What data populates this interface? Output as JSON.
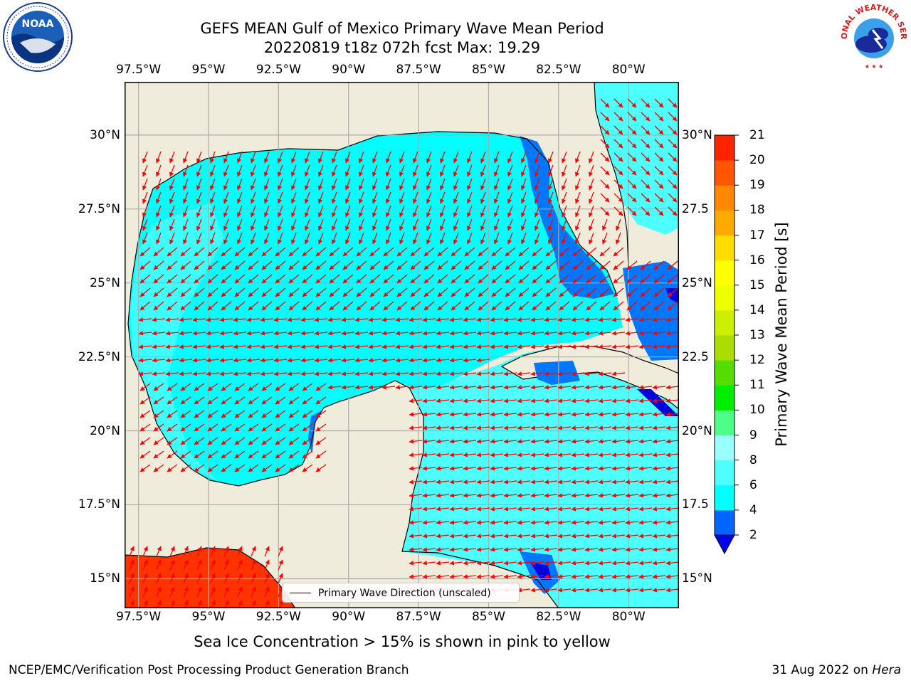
{
  "header": {
    "title": "GEFS MEAN Gulf of Mexico Primary Wave Mean Period",
    "subtitle": "20220819 t18z 072h fcst   Max: 19.29"
  },
  "logos": {
    "left": {
      "icon": "noaa-logo-icon",
      "text": "NOAA"
    },
    "right": {
      "icon": "nws-logo-icon",
      "text": "NATIONAL WEATHER SERVICE"
    }
  },
  "map": {
    "lon_range": [
      -98,
      -78.2
    ],
    "lat_range": [
      14,
      31.8
    ],
    "lon_ticks": [
      "97.5°W",
      "95°W",
      "92.5°W",
      "90°W",
      "87.5°W",
      "85°W",
      "82.5°W",
      "80°W"
    ],
    "lon_tick_values": [
      -97.5,
      -95,
      -92.5,
      -90,
      -87.5,
      -85,
      -82.5,
      -80
    ],
    "lat_ticks": [
      "30°N",
      "27.5°N",
      "25°N",
      "22.5°N",
      "20°N",
      "17.5°N",
      "15°N"
    ],
    "lat_tick_values": [
      30,
      27.5,
      25,
      22.5,
      20,
      17.5,
      15
    ],
    "right_lat_ticks": [
      "30°N",
      "27.5",
      "25°N",
      "22.5",
      "20°N",
      "17.5",
      "15°N"
    ],
    "land_color": "#efecdc",
    "ocean_main_color": "#00ffff",
    "ocean_light_color": "#4dffff",
    "shallow_color": "#0077ff",
    "deep_blue_color": "#0000dd",
    "hot_color": "#ff3300",
    "arrow_color": "#ff0000"
  },
  "legend": {
    "label": "Primary Wave Direction (unscaled)"
  },
  "colorbar": {
    "label": "Primary Wave Mean Period [s]",
    "ticks": [
      "2",
      "4",
      "6",
      "8",
      "9",
      "10",
      "11",
      "12",
      "13",
      "14",
      "15",
      "16",
      "17",
      "18",
      "19",
      "20",
      "21"
    ],
    "tick_values": [
      2,
      4,
      6,
      8,
      9,
      10,
      11,
      12,
      13,
      14,
      15,
      16,
      17,
      18,
      19,
      20,
      21
    ],
    "colors": [
      "#0066ff",
      "#00ffff",
      "#4dffff",
      "#99ffff",
      "#4dff88",
      "#00ee00",
      "#55dd00",
      "#aadd00",
      "#ccee00",
      "#eeff00",
      "#ffff00",
      "#ffdd00",
      "#ffaa00",
      "#ff8800",
      "#ff5500",
      "#ff2200"
    ],
    "under_color": "#0000ee"
  },
  "note": "Sea Ice Concentration > 15% is shown in pink to yellow",
  "footer": {
    "left": "NCEP/EMC/Verification Post Processing Product Generation Branch",
    "right_prefix": "31 Aug 2022 on ",
    "right_host": "Hera"
  }
}
